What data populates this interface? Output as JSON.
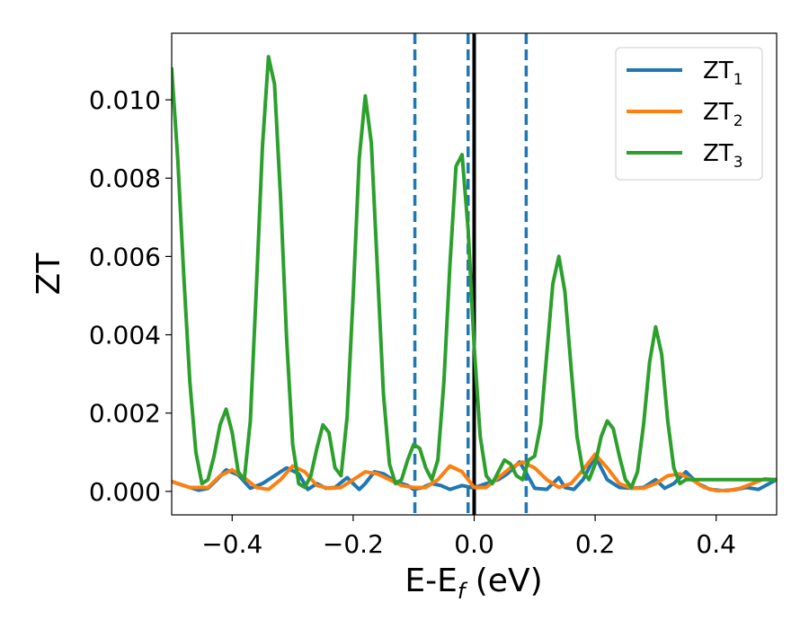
{
  "chart_data": {
    "type": "line",
    "xlabel": {
      "main": "E-E",
      "sub": "f",
      "unit": " (eV)"
    },
    "ylabel": "ZT",
    "xlim": [
      -0.5,
      0.5
    ],
    "ylim": [
      -0.0006,
      0.0117
    ],
    "xticks": [
      -0.4,
      -0.2,
      0.0,
      0.2,
      0.4
    ],
    "xtick_labels": [
      "−0.4",
      "−0.2",
      "0.0",
      "0.2",
      "0.4"
    ],
    "yticks": [
      0.0,
      0.002,
      0.004,
      0.006,
      0.008,
      0.01
    ],
    "ytick_labels": [
      "0.000",
      "0.002",
      "0.004",
      "0.006",
      "0.008",
      "0.010"
    ],
    "grid": false,
    "legend_position": "top-right",
    "vertical_lines": [
      {
        "x": -0.098,
        "style": "dashed",
        "color": "#1f77b4"
      },
      {
        "x": -0.01,
        "style": "dashed",
        "color": "#1f77b4"
      },
      {
        "x": 0.0,
        "style": "solid",
        "color": "#000000"
      },
      {
        "x": 0.086,
        "style": "dashed",
        "color": "#1f77b4"
      }
    ],
    "series": [
      {
        "name": "ZT",
        "name_sub": "1",
        "color": "#1f77b4",
        "x": [
          -0.5,
          -0.47,
          -0.455,
          -0.44,
          -0.425,
          -0.41,
          -0.39,
          -0.37,
          -0.35,
          -0.33,
          -0.31,
          -0.29,
          -0.275,
          -0.26,
          -0.245,
          -0.23,
          -0.21,
          -0.19,
          -0.18,
          -0.165,
          -0.15,
          -0.13,
          -0.11,
          -0.1,
          -0.085,
          -0.07,
          -0.055,
          -0.04,
          -0.02,
          -0.005,
          0.005,
          0.02,
          0.04,
          0.055,
          0.065,
          0.075,
          0.085,
          0.1,
          0.12,
          0.14,
          0.15,
          0.165,
          0.18,
          0.2,
          0.22,
          0.24,
          0.26,
          0.28,
          0.3,
          0.315,
          0.33,
          0.35,
          0.37,
          0.39,
          0.41,
          0.43,
          0.45,
          0.47,
          0.5
        ],
        "y": [
          0.00025,
          0.0001,
          3e-05,
          8e-05,
          0.0003,
          0.00055,
          0.00042,
          8e-05,
          0.0002,
          0.0004,
          0.0006,
          0.00045,
          5e-05,
          0.0002,
          8e-05,
          0.0001,
          0.00035,
          5e-05,
          0.0002,
          0.0005,
          0.00045,
          0.00025,
          0.00015,
          5e-05,
          0.0001,
          0.0002,
          0.00015,
          5e-05,
          0.00015,
          0.0001,
          0.00012,
          0.0002,
          0.0003,
          0.00045,
          0.0006,
          0.00075,
          0.0005,
          8e-05,
          5e-05,
          0.00035,
          0.0001,
          5e-05,
          0.0003,
          0.0009,
          0.0003,
          0.0001,
          8e-05,
          0.0001,
          0.0003,
          8e-05,
          0.0002,
          0.0005,
          0.0002,
          5e-05,
          2e-05,
          4e-05,
          0.0001,
          5e-05,
          0.0003
        ]
      },
      {
        "name": "ZT",
        "name_sub": "2",
        "color": "#ff7f0e",
        "x": [
          -0.5,
          -0.47,
          -0.44,
          -0.42,
          -0.4,
          -0.38,
          -0.36,
          -0.34,
          -0.32,
          -0.3,
          -0.28,
          -0.26,
          -0.24,
          -0.22,
          -0.2,
          -0.18,
          -0.16,
          -0.14,
          -0.12,
          -0.1,
          -0.08,
          -0.06,
          -0.04,
          -0.02,
          0.0,
          0.02,
          0.04,
          0.06,
          0.08,
          0.1,
          0.12,
          0.14,
          0.16,
          0.18,
          0.2,
          0.22,
          0.24,
          0.26,
          0.28,
          0.3,
          0.32,
          0.34,
          0.36,
          0.38,
          0.4,
          0.42,
          0.44,
          0.46,
          0.48,
          0.5
        ],
        "y": [
          0.00025,
          0.0001,
          0.0001,
          0.0004,
          0.00055,
          0.00035,
          0.0001,
          5e-05,
          0.0003,
          0.00065,
          0.0005,
          0.00015,
          8e-05,
          0.0001,
          0.0003,
          0.0005,
          0.00045,
          0.0003,
          0.00015,
          0.0001,
          0.0001,
          0.0003,
          0.00065,
          0.0005,
          0.0001,
          0.0001,
          0.00035,
          0.0006,
          0.00075,
          0.0006,
          0.0003,
          0.0001,
          0.0002,
          0.00055,
          0.00095,
          0.0006,
          0.0002,
          8e-05,
          8e-05,
          0.0002,
          0.0004,
          0.00045,
          0.0003,
          0.0001,
          2e-05,
          2e-05,
          8e-05,
          0.0002,
          0.00032,
          0.0003
        ]
      },
      {
        "name": "ZT",
        "name_sub": "3",
        "color": "#2ca02c",
        "x": [
          -0.5,
          -0.49,
          -0.48,
          -0.47,
          -0.46,
          -0.45,
          -0.44,
          -0.43,
          -0.42,
          -0.41,
          -0.4,
          -0.39,
          -0.38,
          -0.37,
          -0.36,
          -0.35,
          -0.34,
          -0.33,
          -0.32,
          -0.31,
          -0.3,
          -0.29,
          -0.28,
          -0.27,
          -0.26,
          -0.25,
          -0.24,
          -0.23,
          -0.22,
          -0.21,
          -0.2,
          -0.19,
          -0.18,
          -0.17,
          -0.16,
          -0.15,
          -0.14,
          -0.13,
          -0.12,
          -0.11,
          -0.1,
          -0.09,
          -0.08,
          -0.07,
          -0.06,
          -0.05,
          -0.04,
          -0.03,
          -0.02,
          -0.01,
          0.0,
          0.01,
          0.02,
          0.03,
          0.04,
          0.05,
          0.06,
          0.07,
          0.08,
          0.09,
          0.1,
          0.11,
          0.12,
          0.13,
          0.14,
          0.15,
          0.16,
          0.17,
          0.18,
          0.19,
          0.2,
          0.21,
          0.22,
          0.23,
          0.24,
          0.25,
          0.26,
          0.27,
          0.28,
          0.29,
          0.3,
          0.31,
          0.32,
          0.33,
          0.34,
          0.35,
          0.36,
          0.37,
          0.38,
          0.39,
          0.4,
          0.41,
          0.42,
          0.43,
          0.44,
          0.45,
          0.46,
          0.47,
          0.48,
          0.49,
          0.5
        ],
        "y": [
          0.0108,
          0.0085,
          0.0055,
          0.0028,
          0.001,
          0.0002,
          0.0003,
          0.0009,
          0.0017,
          0.0021,
          0.0015,
          0.0005,
          0.0003,
          0.0018,
          0.0052,
          0.0088,
          0.0111,
          0.0104,
          0.0075,
          0.0039,
          0.0012,
          0.0002,
          0.0001,
          0.0004,
          0.0011,
          0.0017,
          0.0015,
          0.0006,
          0.0004,
          0.0019,
          0.005,
          0.0085,
          0.0101,
          0.0089,
          0.0057,
          0.0025,
          0.0007,
          0.0002,
          0.0003,
          0.0008,
          0.0012,
          0.0011,
          0.0006,
          0.0003,
          0.0008,
          0.0028,
          0.0058,
          0.0083,
          0.0086,
          0.0067,
          0.0037,
          0.0014,
          0.0004,
          0.0002,
          0.0005,
          0.0008,
          0.0007,
          0.0004,
          0.0003,
          0.0008,
          0.0009,
          0.0017,
          0.0035,
          0.0053,
          0.006,
          0.0051,
          0.0032,
          0.0014,
          0.0005,
          0.0003,
          0.0007,
          0.0014,
          0.0018,
          0.0016,
          0.0009,
          0.0003,
          0.0001,
          0.0005,
          0.0017,
          0.0033,
          0.0042,
          0.0035,
          0.0018,
          0.0006,
          0.0002,
          0.0003,
          0.0003,
          0.0003,
          0.0003,
          0.0003,
          0.0003,
          0.0003,
          0.0003,
          0.0003,
          0.0003,
          0.0003,
          0.0003,
          0.0003,
          0.0003,
          0.0003,
          0.0003
        ]
      }
    ]
  }
}
